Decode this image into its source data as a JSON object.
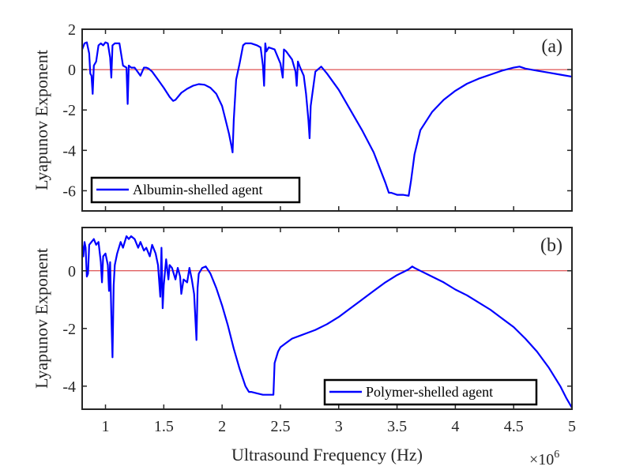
{
  "chart_data": [
    {
      "type": "line",
      "panel_label": "(a)",
      "ylabel": "Lyapunov Exponent",
      "xlabel": "",
      "xlim": [
        0.8,
        5.0
      ],
      "ylim": [
        -7,
        2
      ],
      "x_exponent": 6,
      "xticks": [
        1,
        1.5,
        2,
        2.5,
        3,
        3.5,
        4,
        4.5,
        5
      ],
      "yticks": [
        -6,
        -4,
        -2,
        0,
        2
      ],
      "ytick_labels": [
        "-6",
        "-4",
        "-2",
        "0",
        "2"
      ],
      "legend": "Albumin-shelled agent",
      "legend_position": "bottom-left",
      "reference_line": 0,
      "series": [
        {
          "name": "Albumin-shelled agent",
          "x": [
            0.8,
            0.82,
            0.84,
            0.86,
            0.87,
            0.88,
            0.89,
            0.9,
            0.92,
            0.94,
            0.96,
            0.98,
            1.0,
            1.02,
            1.04,
            1.05,
            1.06,
            1.08,
            1.1,
            1.12,
            1.15,
            1.18,
            1.19,
            1.2,
            1.22,
            1.25,
            1.3,
            1.33,
            1.35,
            1.37,
            1.4,
            1.45,
            1.5,
            1.55,
            1.58,
            1.6,
            1.65,
            1.7,
            1.75,
            1.8,
            1.85,
            1.9,
            1.95,
            2.0,
            2.03,
            2.06,
            2.08,
            2.09,
            2.1,
            2.12,
            2.15,
            2.18,
            2.2,
            2.25,
            2.3,
            2.33,
            2.35,
            2.36,
            2.37,
            2.38,
            2.4,
            2.45,
            2.5,
            2.52,
            2.53,
            2.55,
            2.6,
            2.63,
            2.64,
            2.65,
            2.67,
            2.7,
            2.72,
            2.74,
            2.75,
            2.76,
            2.8,
            2.85,
            2.9,
            3.0,
            3.1,
            3.2,
            3.3,
            3.4,
            3.43,
            3.45,
            3.5,
            3.55,
            3.6,
            3.62,
            3.65,
            3.7,
            3.8,
            3.9,
            4.0,
            4.1,
            4.2,
            4.3,
            4.4,
            4.5,
            4.55,
            4.6,
            4.7,
            4.8,
            4.9,
            5.0
          ],
          "y": [
            1.0,
            1.3,
            1.35,
            0.8,
            -0.2,
            -0.3,
            -1.2,
            0.2,
            0.4,
            1.2,
            1.3,
            1.2,
            1.35,
            1.3,
            0.6,
            -0.4,
            1.2,
            1.3,
            1.3,
            1.3,
            0.2,
            0.1,
            -1.7,
            0.2,
            0.1,
            0.1,
            -0.3,
            0.1,
            0.1,
            0.05,
            -0.1,
            -0.5,
            -0.9,
            -1.35,
            -1.55,
            -1.5,
            -1.15,
            -0.95,
            -0.8,
            -0.72,
            -0.75,
            -0.9,
            -1.2,
            -1.8,
            -2.5,
            -3.2,
            -3.8,
            -4.1,
            -2.5,
            -0.5,
            0.3,
            1.2,
            1.3,
            1.3,
            1.2,
            1.1,
            0.2,
            -0.8,
            1.3,
            0.9,
            1.1,
            1.0,
            0.3,
            -0.4,
            1.0,
            0.9,
            0.5,
            -0.1,
            -0.8,
            0.4,
            0.1,
            -0.3,
            -1.2,
            -2.5,
            -3.4,
            -1.8,
            -0.1,
            0.15,
            -0.2,
            -1.0,
            -2.0,
            -3.0,
            -4.1,
            -5.6,
            -6.1,
            -6.1,
            -6.2,
            -6.2,
            -6.25,
            -5.5,
            -4.2,
            -3.0,
            -2.1,
            -1.5,
            -1.05,
            -0.7,
            -0.45,
            -0.25,
            -0.05,
            0.1,
            0.15,
            0.05,
            -0.05,
            -0.15,
            -0.25,
            -0.35
          ]
        }
      ]
    },
    {
      "type": "line",
      "panel_label": "(b)",
      "ylabel": "Lyapunov Exponent",
      "xlabel": "Ultrasound Frequency (Hz)",
      "xlim": [
        0.8,
        5.0
      ],
      "ylim": [
        -4.8,
        1.5
      ],
      "x_exponent": 6,
      "xticks": [
        1,
        1.5,
        2,
        2.5,
        3,
        3.5,
        4,
        4.5,
        5
      ],
      "xtick_labels": [
        "1",
        "1.5",
        "2",
        "2.5",
        "3",
        "3.5",
        "4",
        "4.5",
        "5"
      ],
      "yticks": [
        -4,
        -2,
        0
      ],
      "ytick_labels": [
        "-4",
        "-2",
        "0"
      ],
      "legend": "Polymer-shelled agent",
      "legend_position": "bottom-right",
      "reference_line": 0,
      "series": [
        {
          "name": "Polymer-shelled agent",
          "x": [
            0.8,
            0.81,
            0.82,
            0.83,
            0.84,
            0.85,
            0.86,
            0.88,
            0.9,
            0.92,
            0.94,
            0.96,
            0.97,
            0.98,
            1.0,
            1.02,
            1.03,
            1.04,
            1.05,
            1.06,
            1.07,
            1.08,
            1.1,
            1.13,
            1.15,
            1.18,
            1.2,
            1.22,
            1.25,
            1.28,
            1.3,
            1.33,
            1.35,
            1.38,
            1.4,
            1.43,
            1.45,
            1.47,
            1.48,
            1.49,
            1.5,
            1.52,
            1.54,
            1.55,
            1.57,
            1.6,
            1.62,
            1.64,
            1.65,
            1.67,
            1.7,
            1.72,
            1.74,
            1.76,
            1.78,
            1.79,
            1.8,
            1.83,
            1.86,
            1.9,
            1.95,
            2.0,
            2.05,
            2.1,
            2.15,
            2.2,
            2.23,
            2.25,
            2.3,
            2.35,
            2.4,
            2.44,
            2.45,
            2.48,
            2.5,
            2.55,
            2.6,
            2.7,
            2.8,
            2.9,
            3.0,
            3.1,
            3.2,
            3.3,
            3.4,
            3.5,
            3.55,
            3.6,
            3.63,
            3.65,
            3.7,
            3.8,
            3.9,
            4.0,
            4.1,
            4.2,
            4.3,
            4.4,
            4.5,
            4.6,
            4.7,
            4.8,
            4.9,
            4.95,
            5.0
          ],
          "y": [
            0.9,
            0.5,
            1.0,
            0.8,
            -0.2,
            -0.1,
            0.9,
            1.0,
            1.1,
            0.9,
            1.0,
            0.3,
            -0.4,
            0.5,
            0.6,
            0.2,
            -0.7,
            0.3,
            -1.5,
            -3.0,
            -0.5,
            0.2,
            0.6,
            1.0,
            0.8,
            1.2,
            1.1,
            1.2,
            1.1,
            0.8,
            1.0,
            0.7,
            0.8,
            0.5,
            0.9,
            0.6,
            0.2,
            -0.9,
            0.8,
            -1.3,
            -0.5,
            0.4,
            -0.3,
            0.2,
            0.1,
            -0.3,
            0.1,
            -0.2,
            -0.8,
            -0.3,
            -0.4,
            0.1,
            -0.3,
            -0.8,
            -2.4,
            -0.6,
            -0.1,
            0.1,
            0.15,
            -0.1,
            -0.6,
            -1.2,
            -1.9,
            -2.7,
            -3.4,
            -4.0,
            -4.2,
            -4.2,
            -4.25,
            -4.3,
            -4.3,
            -4.3,
            -3.2,
            -2.8,
            -2.65,
            -2.5,
            -2.35,
            -2.2,
            -2.05,
            -1.85,
            -1.6,
            -1.3,
            -1.0,
            -0.7,
            -0.4,
            -0.15,
            -0.05,
            0.05,
            0.15,
            0.1,
            0.0,
            -0.2,
            -0.4,
            -0.65,
            -0.85,
            -1.1,
            -1.35,
            -1.65,
            -1.95,
            -2.35,
            -2.8,
            -3.35,
            -4.0,
            -4.4,
            -4.75
          ]
        }
      ]
    }
  ]
}
